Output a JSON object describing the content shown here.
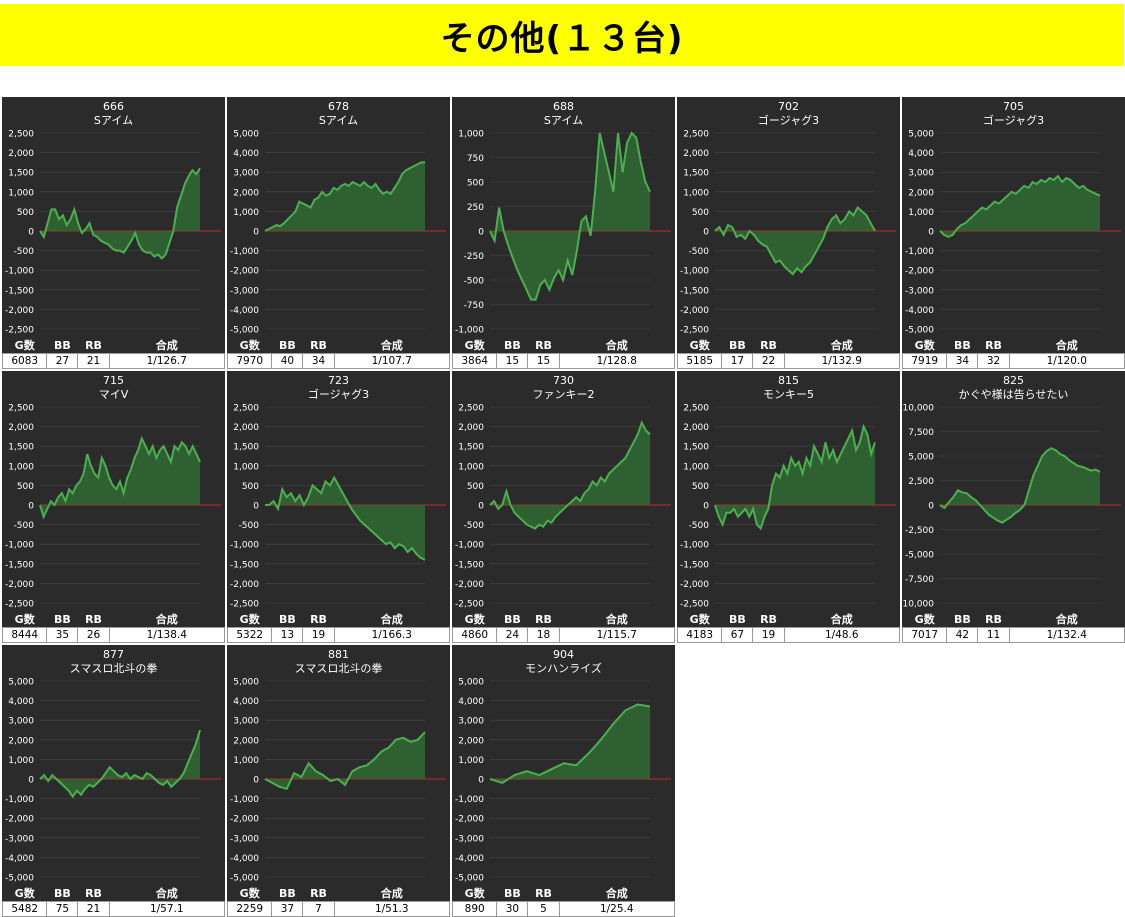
{
  "page_title": "その他(１３台)",
  "stat_headers": [
    "G数",
    "BB",
    "RB",
    "合成"
  ],
  "colors": {
    "banner": "#ffff00",
    "panel_bg": "#2b2b2b",
    "line": "#4caf50",
    "fill": "#2f6a33",
    "zero_line": "#c62828"
  },
  "machines": [
    {
      "number": "666",
      "name": "Sアイム",
      "stats": [
        "6083",
        "27",
        "21",
        "1/126.7"
      ],
      "chart_data": {
        "type": "line",
        "title": "666",
        "subtitle": "Sアイム",
        "yticks": [
          "2,500",
          "2,000",
          "1,500",
          "1,000",
          "500",
          "0",
          "-500",
          "-1,000",
          "-1,500",
          "-2,000",
          "-2,500"
        ],
        "ylim": [
          -2500,
          2500
        ],
        "values": [
          0,
          -150,
          200,
          550,
          550,
          300,
          400,
          150,
          300,
          550,
          200,
          -50,
          50,
          200,
          -100,
          -150,
          -250,
          -300,
          -350,
          -450,
          -500,
          -500,
          -550,
          -400,
          -250,
          -50,
          -350,
          -500,
          -550,
          -550,
          -650,
          -600,
          -700,
          -600,
          -300,
          0,
          600,
          900,
          1200,
          1400,
          1550,
          1450,
          1600
        ]
      }
    },
    {
      "number": "678",
      "name": "Sアイム",
      "stats": [
        "7970",
        "40",
        "34",
        "1/107.7"
      ],
      "chart_data": {
        "type": "line",
        "title": "678",
        "subtitle": "Sアイム",
        "yticks": [
          "5,000",
          "4,000",
          "3,000",
          "2,000",
          "1,000",
          "0",
          "-1,000",
          "-2,000",
          "-3,000",
          "-4,000",
          "-5,000"
        ],
        "ylim": [
          -5000,
          5000
        ],
        "values": [
          0,
          100,
          200,
          300,
          250,
          400,
          600,
          800,
          1000,
          1500,
          1400,
          1300,
          1200,
          1600,
          1700,
          2000,
          1800,
          1900,
          2200,
          2100,
          2300,
          2400,
          2300,
          2500,
          2400,
          2300,
          2500,
          2300,
          2200,
          2400,
          2100,
          1900,
          2000,
          1900,
          2200,
          2500,
          2900,
          3100,
          3200,
          3300,
          3400,
          3500,
          3500
        ]
      }
    },
    {
      "number": "688",
      "name": "Sアイム",
      "stats": [
        "3864",
        "15",
        "15",
        "1/128.8"
      ],
      "chart_data": {
        "type": "line",
        "title": "688",
        "subtitle": "Sアイム",
        "yticks": [
          "1,000",
          "750",
          "500",
          "250",
          "0",
          "-250",
          "-500",
          "-750",
          "-1,000"
        ],
        "ylim": [
          -1000,
          1000
        ],
        "values": [
          0,
          -100,
          240,
          0,
          -150,
          -280,
          -400,
          -500,
          -600,
          -700,
          -700,
          -550,
          -500,
          -600,
          -480,
          -400,
          -500,
          -300,
          -450,
          -200,
          100,
          150,
          -50,
          400,
          1000,
          800,
          600,
          400,
          1000,
          600,
          900,
          1000,
          950,
          700,
          500,
          400
        ]
      }
    },
    {
      "number": "702",
      "name": "ゴージャグ3",
      "stats": [
        "5185",
        "17",
        "22",
        "1/132.9"
      ],
      "chart_data": {
        "type": "line",
        "title": "702",
        "subtitle": "ゴージャグ3",
        "yticks": [
          "2,500",
          "2,000",
          "1,500",
          "1,000",
          "500",
          "0",
          "-500",
          "-1,000",
          "-1,500",
          "-2,000",
          "-2,500"
        ],
        "ylim": [
          -2500,
          2500
        ],
        "values": [
          0,
          100,
          -100,
          150,
          100,
          -150,
          -100,
          -200,
          0,
          -100,
          -250,
          -350,
          -400,
          -600,
          -800,
          -750,
          -900,
          -1000,
          -1100,
          -950,
          -1050,
          -900,
          -800,
          -600,
          -400,
          -200,
          100,
          300,
          400,
          200,
          300,
          500,
          400,
          600,
          500,
          400,
          200,
          0
        ]
      }
    },
    {
      "number": "705",
      "name": "ゴージャグ3",
      "stats": [
        "7919",
        "34",
        "32",
        "1/120.0"
      ],
      "chart_data": {
        "type": "line",
        "title": "705",
        "subtitle": "ゴージャグ3",
        "yticks": [
          "5,000",
          "4,000",
          "3,000",
          "2,000",
          "1,000",
          "0",
          "-1,000",
          "-2,000",
          "-3,000",
          "-4,000",
          "-5,000"
        ],
        "ylim": [
          -5000,
          5000
        ],
        "values": [
          0,
          -200,
          -300,
          -200,
          100,
          300,
          400,
          600,
          800,
          1000,
          1200,
          1100,
          1300,
          1500,
          1400,
          1600,
          1800,
          2000,
          1900,
          2100,
          2300,
          2200,
          2500,
          2400,
          2600,
          2500,
          2700,
          2600,
          2800,
          2500,
          2700,
          2600,
          2400,
          2200,
          2300,
          2100,
          2000,
          1900,
          1800
        ]
      }
    },
    {
      "number": "715",
      "name": "マイV",
      "stats": [
        "8444",
        "35",
        "26",
        "1/138.4"
      ],
      "chart_data": {
        "type": "line",
        "title": "715",
        "subtitle": "マイV",
        "yticks": [
          "2,500",
          "2,000",
          "1,500",
          "1,000",
          "500",
          "0",
          "-500",
          "-1,000",
          "-1,500",
          "-2,000",
          "-2,500"
        ],
        "ylim": [
          -2500,
          2500
        ],
        "values": [
          0,
          -300,
          -100,
          100,
          0,
          200,
          300,
          100,
          400,
          300,
          500,
          600,
          800,
          1300,
          1000,
          800,
          700,
          1200,
          1000,
          700,
          500,
          400,
          600,
          300,
          700,
          900,
          1200,
          1400,
          1700,
          1500,
          1300,
          1500,
          1200,
          1400,
          1500,
          1300,
          1100,
          1500,
          1400,
          1600,
          1500,
          1300,
          1500,
          1300,
          1100
        ]
      }
    },
    {
      "number": "723",
      "name": "ゴージャグ3",
      "stats": [
        "5322",
        "13",
        "19",
        "1/166.3"
      ],
      "chart_data": {
        "type": "line",
        "title": "723",
        "subtitle": "ゴージャグ3",
        "yticks": [
          "2,500",
          "2,000",
          "1,500",
          "1,000",
          "500",
          "0",
          "-500",
          "-1,000",
          "-1,500",
          "-2,000",
          "-2,500"
        ],
        "ylim": [
          -2500,
          2500
        ],
        "values": [
          0,
          0,
          100,
          -100,
          400,
          200,
          300,
          100,
          250,
          0,
          200,
          500,
          400,
          300,
          600,
          500,
          700,
          500,
          300,
          100,
          -100,
          -250,
          -400,
          -500,
          -600,
          -700,
          -800,
          -900,
          -1000,
          -950,
          -1100,
          -1000,
          -1050,
          -1200,
          -1100,
          -1250,
          -1350,
          -1400
        ]
      }
    },
    {
      "number": "730",
      "name": "ファンキー2",
      "stats": [
        "4860",
        "24",
        "18",
        "1/115.7"
      ],
      "chart_data": {
        "type": "line",
        "title": "730",
        "subtitle": "ファンキー2",
        "yticks": [
          "2,500",
          "2,000",
          "1,500",
          "1,000",
          "500",
          "0",
          "-500",
          "-1,000",
          "-1,500",
          "-2,000",
          "-2,500"
        ],
        "ylim": [
          -2500,
          2500
        ],
        "values": [
          0,
          100,
          -100,
          0,
          350,
          0,
          -200,
          -300,
          -400,
          -500,
          -550,
          -600,
          -500,
          -550,
          -400,
          -450,
          -300,
          -200,
          -100,
          0,
          100,
          200,
          100,
          300,
          400,
          600,
          500,
          700,
          600,
          800,
          900,
          1000,
          1100,
          1200,
          1400,
          1600,
          1800,
          2100,
          1900,
          1800
        ]
      }
    },
    {
      "number": "815",
      "name": "モンキー5",
      "stats": [
        "4183",
        "67",
        "19",
        "1/48.6"
      ],
      "chart_data": {
        "type": "line",
        "title": "815",
        "subtitle": "モンキー5",
        "yticks": [
          "2,500",
          "2,000",
          "1,500",
          "1,000",
          "500",
          "0",
          "-500",
          "-1,000",
          "-1,500",
          "-2,000",
          "-2,500"
        ],
        "ylim": [
          -2500,
          2500
        ],
        "values": [
          0,
          -300,
          -500,
          -200,
          -200,
          -100,
          -300,
          -200,
          -100,
          -300,
          -100,
          -500,
          -600,
          -300,
          -100,
          500,
          800,
          700,
          1000,
          800,
          1200,
          1000,
          1100,
          800,
          1200,
          1000,
          1500,
          1300,
          1100,
          1600,
          1200,
          1400,
          1100,
          1300,
          1500,
          1700,
          1900,
          1400,
          1600,
          2000,
          1800,
          1300,
          1600
        ]
      }
    },
    {
      "number": "825",
      "name": "かぐや様は告らせたい",
      "stats": [
        "7017",
        "42",
        "11",
        "1/132.4"
      ],
      "chart_data": {
        "type": "line",
        "title": "825",
        "subtitle": "かぐや様は告らせたい",
        "yticks": [
          "10,000",
          "7,500",
          "5,000",
          "2,500",
          "0",
          "-2,500",
          "-5,000",
          "-7,500",
          "-10,000"
        ],
        "ylim": [
          -10000,
          10000
        ],
        "values": [
          0,
          -300,
          300,
          800,
          1500,
          1300,
          1200,
          800,
          500,
          0,
          -500,
          -1000,
          -1300,
          -1600,
          -1800,
          -1500,
          -1200,
          -800,
          -500,
          0,
          1500,
          3000,
          4000,
          5000,
          5500,
          5800,
          5600,
          5200,
          5000,
          4600,
          4300,
          4000,
          3900,
          3700,
          3500,
          3600,
          3400
        ]
      }
    },
    {
      "number": "877",
      "name": "スマスロ北斗の拳",
      "stats": [
        "5482",
        "75",
        "21",
        "1/57.1"
      ],
      "chart_data": {
        "type": "line",
        "title": "877",
        "subtitle": "スマスロ北斗の拳",
        "yticks": [
          "5,000",
          "4,000",
          "3,000",
          "2,000",
          "1,000",
          "0",
          "-1,000",
          "-2,000",
          "-3,000",
          "-4,000",
          "-5,000"
        ],
        "ylim": [
          -5000,
          5000
        ],
        "values": [
          0,
          200,
          -100,
          200,
          0,
          -200,
          -400,
          -600,
          -900,
          -600,
          -800,
          -500,
          -300,
          -400,
          -200,
          0,
          300,
          600,
          400,
          200,
          100,
          300,
          0,
          200,
          100,
          0,
          300,
          200,
          0,
          -200,
          -300,
          -100,
          -400,
          -200,
          0,
          300,
          800,
          1300,
          1800,
          2500
        ]
      }
    },
    {
      "number": "881",
      "name": "スマスロ北斗の拳",
      "stats": [
        "2259",
        "37",
        "7",
        "1/51.3"
      ],
      "chart_data": {
        "type": "line",
        "title": "881",
        "subtitle": "スマスロ北斗の拳",
        "yticks": [
          "5,000",
          "4,000",
          "3,000",
          "2,000",
          "1,000",
          "0",
          "-1,000",
          "-2,000",
          "-3,000",
          "-4,000",
          "-5,000"
        ],
        "ylim": [
          -5000,
          5000
        ],
        "values": [
          0,
          -200,
          -400,
          -500,
          300,
          100,
          800,
          400,
          200,
          -100,
          0,
          -300,
          400,
          600,
          700,
          1000,
          1400,
          1600,
          2000,
          2100,
          1900,
          2000,
          2400
        ]
      }
    },
    {
      "number": "904",
      "name": "モンハンライズ",
      "stats": [
        "890",
        "30",
        "5",
        "1/25.4"
      ],
      "chart_data": {
        "type": "line",
        "title": "904",
        "subtitle": "モンハンライズ",
        "yticks": [
          "5,000",
          "4,000",
          "3,000",
          "2,000",
          "1,000",
          "0",
          "-1,000",
          "-2,000",
          "-3,000",
          "-4,000",
          "-5,000"
        ],
        "ylim": [
          -5000,
          5000
        ],
        "values": [
          0,
          -200,
          200,
          400,
          200,
          500,
          800,
          700,
          1300,
          2000,
          2800,
          3500,
          3800,
          3700
        ]
      }
    }
  ]
}
